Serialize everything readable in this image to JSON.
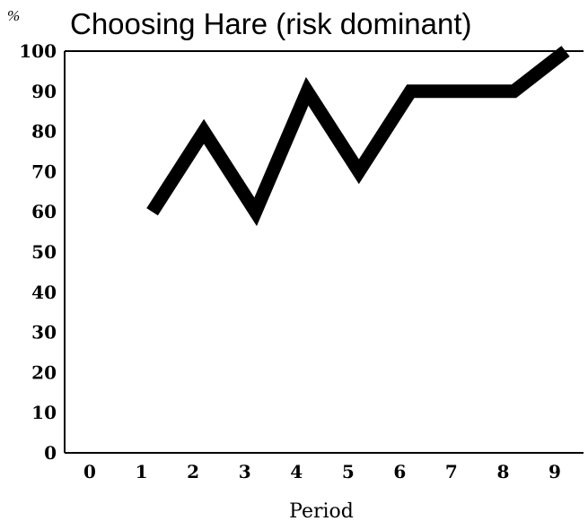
{
  "chart_data": {
    "type": "line",
    "title": "Choosing Hare (risk dominant)",
    "ylabel": "%",
    "xlabel": "Period",
    "x": [
      1,
      2,
      3,
      4,
      5,
      6,
      7,
      8,
      9
    ],
    "series": [
      {
        "values": [
          60,
          80,
          60,
          90,
          70,
          90,
          90,
          90,
          100
        ]
      }
    ],
    "xticks": [
      "0",
      "1",
      "2",
      "3",
      "4",
      "5",
      "6",
      "7",
      "8",
      "9"
    ],
    "yticks": [
      "0",
      "10",
      "20",
      "30",
      "40",
      "50",
      "60",
      "70",
      "80",
      "90",
      "100"
    ],
    "xlim": [
      0,
      9.5
    ],
    "ylim": [
      0,
      100
    ],
    "grid": false,
    "line_color": "#000000"
  }
}
